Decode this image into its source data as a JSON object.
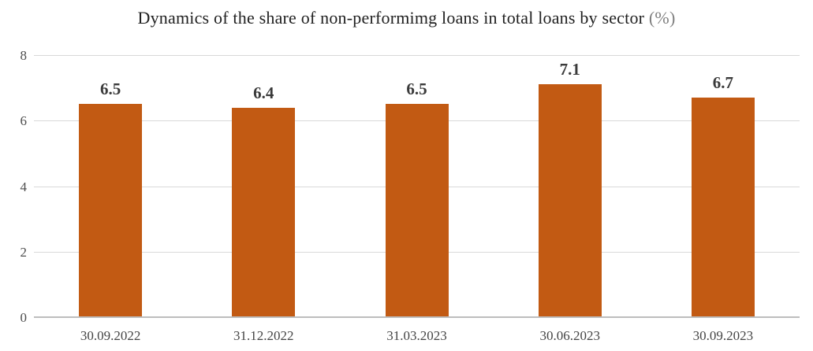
{
  "title": {
    "text": "Dynamics of the share of non-performimg loans in total loans by sector",
    "suffix": "(%)"
  },
  "chart_data": {
    "type": "bar",
    "title": "Dynamics of the share of non-performimg loans in total loans by sector (%)",
    "categories": [
      "30.09.2022",
      "31.12.2022",
      "31.03.2023",
      "30.06.2023",
      "30.09.2023"
    ],
    "values": [
      6.5,
      6.4,
      6.5,
      7.1,
      6.7
    ],
    "value_labels": [
      "6.5",
      "6.4",
      "6.5",
      "7.1",
      "6.7"
    ],
    "xlabel": "",
    "ylabel": "",
    "ylim": [
      0,
      8
    ],
    "yticks": [
      0,
      2,
      4,
      6,
      8
    ],
    "grid": true,
    "legend": false,
    "bar_color": "#c25a13",
    "gridline_color": "#d9d9d9",
    "baseline_color": "#bdbdbd",
    "title_color": "#212121",
    "title_suffix_color": "#7f7f7f",
    "value_label_color": "#3a3a3a",
    "tick_label_color": "#4d4d4d"
  }
}
